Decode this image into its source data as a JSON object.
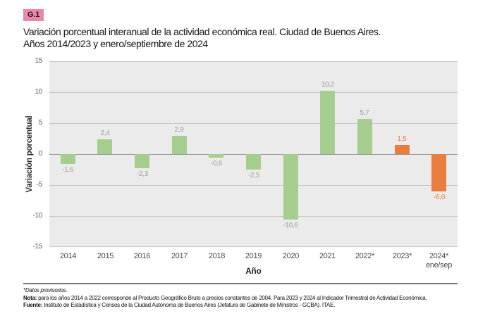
{
  "figure": {
    "badge": "G.1",
    "title_lines": [
      "Variación porcentual interanual de la actividad económica real. Ciudad de Buenos Aires.",
      "Años 2014/2023 y enero/septiembre de 2024"
    ]
  },
  "chart_data": {
    "type": "bar",
    "title": "Variación porcentual interanual de la actividad económica real. Ciudad de Buenos Aires. Años 2014/2023 y enero/septiembre de 2024",
    "xlabel": "Año",
    "ylabel": "Variación porcentual",
    "ylim": [
      -15,
      15
    ],
    "yticks": [
      15,
      10,
      5,
      0,
      -5,
      -10,
      -15
    ],
    "grid": true,
    "legend": "none",
    "categories": [
      "2014",
      "2015",
      "2016",
      "2017",
      "2018",
      "2019",
      "2020",
      "2021",
      "2022*",
      "2023*",
      "2024*\nene/sep"
    ],
    "values": [
      -1.6,
      2.4,
      -2.3,
      2.9,
      -0.6,
      -2.5,
      -10.6,
      10.2,
      5.7,
      1.5,
      -6.0
    ],
    "value_labels": [
      "-1,6",
      "2,4",
      "-2,3",
      "2,9",
      "-0,6",
      "-2,5",
      "-10,6",
      "10,2",
      "5,7",
      "1,5",
      "-6,0"
    ],
    "bar_colors": [
      "#a5cd8e",
      "#a5cd8e",
      "#a5cd8e",
      "#a5cd8e",
      "#a5cd8e",
      "#a5cd8e",
      "#a5cd8e",
      "#a5cd8e",
      "#a5cd8e",
      "#e87d3e",
      "#e87d3e"
    ],
    "label_colors": [
      "#9b9b9b",
      "#9b9b9b",
      "#9b9b9b",
      "#9b9b9b",
      "#9b9b9b",
      "#9b9b9b",
      "#9b9b9b",
      "#9b9b9b",
      "#9b9b9b",
      "#e87d3e",
      "#e87d3e"
    ],
    "colors": {
      "green_bar": "#a5cd8e",
      "orange_bar": "#e87d3e",
      "value_label_gray": "#9b9b9b",
      "plot_background": "#ebebeb",
      "gridline": "#c6c6c6",
      "zero_line": "#9a9a9a",
      "badge_pink": "#ee86ab"
    }
  },
  "footer": {
    "provisional_note": "*Datos provisorios.",
    "nota_label": "Nota:",
    "nota_text": " para los años 2014 a 2022 corresponde al Producto Geográfico Bruto a precios constantes de 2004. Para 2023 y 2024 al Indicador Trimestral de Actividad Económica.",
    "fuente_label": "Fuente:",
    "fuente_text": " Instituto de Estadística y Censos de la Ciudad Autónoma de Buenos Aires (Jefatura de Gabinete de Ministros - GCBA). ITAE."
  }
}
